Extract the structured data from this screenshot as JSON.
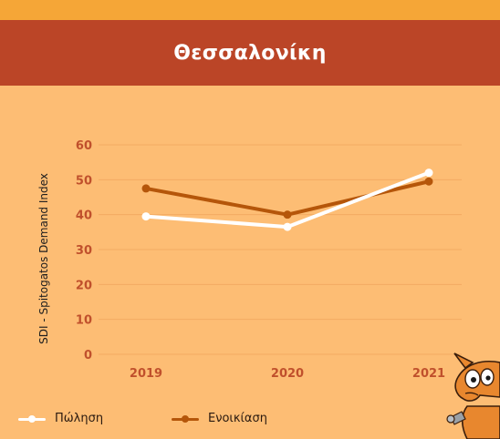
{
  "header": {
    "title": "Θεσσαλονίκη"
  },
  "colors": {
    "background": "#fdbd74",
    "banner": "#bb4527",
    "strip": "#f5a637",
    "axis_text": "#c0502c"
  },
  "chart_data": {
    "type": "line",
    "x": [
      "2019",
      "2020",
      "2021"
    ],
    "ylabel": "SDI - Spitogatos Demand Index",
    "ylim": [
      0,
      60
    ],
    "yticks": [
      0,
      10,
      20,
      30,
      40,
      50,
      60
    ],
    "grid": true,
    "legend_position": "bottom-left",
    "series": [
      {
        "name": "Πώληση",
        "values": [
          39.5,
          36.5,
          52
        ],
        "color": "#ffffff"
      },
      {
        "name": "Ενοικίαση",
        "values": [
          47.5,
          40,
          49.5
        ],
        "color": "#b5560a"
      }
    ]
  },
  "decor": {
    "mascot": "cartoon-cat-mascot"
  }
}
